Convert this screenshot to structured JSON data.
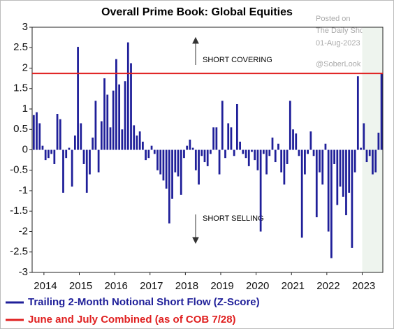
{
  "chart_data": {
    "type": "bar",
    "title": "Overall Prime Book: Global Equities",
    "categories": [
      null,
      null,
      null,
      null,
      "2014",
      null,
      null,
      null,
      null,
      null,
      null,
      null,
      null,
      null,
      null,
      null,
      "2015",
      null,
      null,
      null,
      null,
      null,
      null,
      null,
      null,
      null,
      null,
      null,
      "2016",
      null,
      null,
      null,
      null,
      null,
      null,
      null,
      null,
      null,
      null,
      null,
      "2017",
      null,
      null,
      null,
      null,
      null,
      null,
      null,
      null,
      null,
      null,
      null,
      "2018",
      null,
      null,
      null,
      null,
      null,
      null,
      null,
      null,
      null,
      null,
      null,
      "2019",
      null,
      null,
      null,
      null,
      null,
      null,
      null,
      null,
      null,
      null,
      null,
      "2020",
      null,
      null,
      null,
      null,
      null,
      null,
      null,
      null,
      null,
      null,
      null,
      "2021",
      null,
      null,
      null,
      null,
      null,
      null,
      null,
      null,
      null,
      null,
      null,
      "2022",
      null,
      null,
      null,
      null,
      null,
      null,
      null,
      null,
      null,
      null,
      null,
      "2023",
      null,
      null,
      null,
      null,
      null,
      null
    ],
    "series": [
      {
        "name": "Trailing 2-Month Notional Short Flow (Z-Score)",
        "color": "#1f1f99",
        "values": [
          0.85,
          0.92,
          0.65,
          0.1,
          -0.25,
          -0.2,
          -0.1,
          -0.35,
          0.88,
          0.75,
          -1.05,
          -0.2,
          0.05,
          -0.9,
          0.35,
          2.52,
          0.65,
          -0.35,
          -1.05,
          -0.6,
          0.3,
          1.2,
          -0.55,
          0.7,
          1.75,
          1.35,
          0.55,
          1.45,
          2.22,
          1.6,
          0.5,
          1.68,
          2.63,
          2.12,
          0.6,
          0.35,
          0.45,
          0.2,
          -0.25,
          -0.2,
          0.1,
          -0.1,
          -0.5,
          -0.6,
          -0.75,
          -0.95,
          -1.8,
          -1.2,
          -0.55,
          -0.65,
          -1.1,
          -0.2,
          0.1,
          0.25,
          0.05,
          -0.5,
          -0.85,
          -0.15,
          -0.3,
          -0.4,
          -0.1,
          0.55,
          0.55,
          -0.6,
          1.2,
          -0.2,
          0.65,
          0.55,
          -0.15,
          1.12,
          0.2,
          -0.1,
          -0.2,
          -0.4,
          -0.05,
          -0.25,
          -0.5,
          -2.0,
          -0.1,
          -0.6,
          -0.15,
          0.3,
          -0.3,
          0.15,
          -0.55,
          -0.85,
          -0.35,
          1.2,
          0.5,
          0.4,
          -0.15,
          -2.15,
          -0.6,
          -0.1,
          0.45,
          -0.15,
          -1.65,
          -0.55,
          -0.85,
          0.15,
          -2.0,
          -2.65,
          -0.35,
          -1.35,
          -0.9,
          -1.15,
          -1.6,
          -1.05,
          -2.4,
          -0.55,
          1.8,
          0.05,
          0.65,
          -0.3,
          -0.15,
          -0.6,
          -0.55,
          0.42,
          1.87
        ]
      }
    ],
    "reference_line": {
      "name": "June and July Combined (as of COB 7/28)",
      "value": 1.87,
      "color": "#e02020"
    },
    "ylim": [
      -3,
      3
    ],
    "yticks": [
      3,
      2.5,
      2,
      1.5,
      1,
      0.5,
      0,
      -0.5,
      -1,
      -1.5,
      -2,
      -2.5,
      -3
    ],
    "annotations": [
      "SHORT COVERING",
      "SHORT SELLING"
    ],
    "watermark": [
      "Posted on",
      "The Daily Shot",
      "01-Aug-2023",
      "@SoberLook"
    ]
  }
}
